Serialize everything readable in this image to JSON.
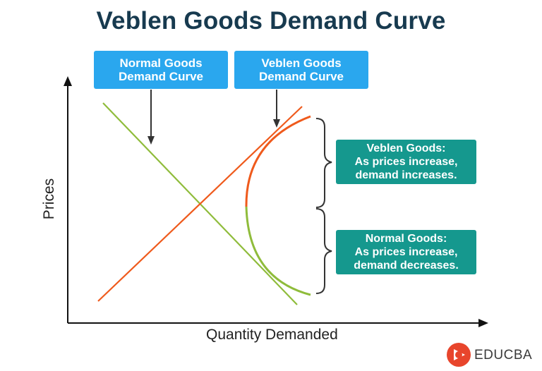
{
  "title": "Veblen Goods Demand Curve",
  "callouts": {
    "normal": {
      "line1": "Normal Goods",
      "line2": "Demand Curve"
    },
    "veblen": {
      "line1": "Veblen Goods",
      "line2": "Demand Curve"
    }
  },
  "notes": {
    "veblen": {
      "line1": "Veblen Goods:",
      "line2": "As prices increase,",
      "line3": "demand increases."
    },
    "normal": {
      "line1": "Normal Goods:",
      "line2": "As prices increase,",
      "line3": "demand decreases."
    }
  },
  "axes": {
    "y_label": "Prices",
    "x_label": "Quantity Demanded"
  },
  "brand": {
    "name": "EDUCBA"
  },
  "colors": {
    "title": "#173a4f",
    "normal_curve": "#8fbc3b",
    "veblen_curve": "#ef5a1c",
    "callout_bg": "#2aa7ee",
    "note_bg": "#15988e",
    "axis": "#111111",
    "logo": "#e8452c"
  },
  "icons": {
    "logo": "educba-logo-icon"
  }
}
